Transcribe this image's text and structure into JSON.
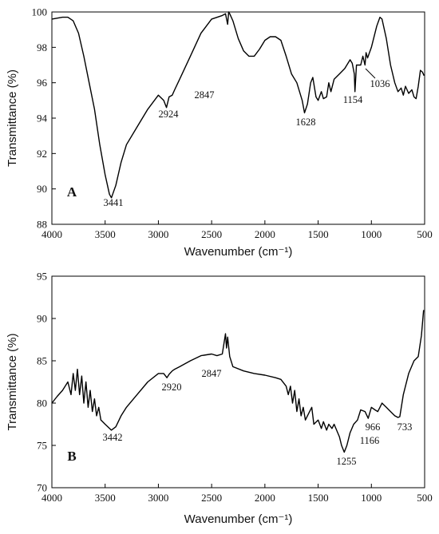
{
  "chart_data": [
    {
      "type": "line",
      "panel_label": "A",
      "xlabel": "Wavenumber (cm⁻¹)",
      "ylabel": "Transmittance (%)",
      "xlim": [
        4000,
        500
      ],
      "ylim": [
        88,
        100
      ],
      "xticks": [
        4000,
        3500,
        3000,
        2500,
        2000,
        1500,
        1000,
        500
      ],
      "yticks": [
        88,
        90,
        92,
        94,
        96,
        98,
        100
      ],
      "color": "#000000",
      "annotations": [
        "3441",
        "2924",
        "2847",
        "1628",
        "1154",
        "1036"
      ],
      "x": [
        4000,
        3900,
        3850,
        3800,
        3750,
        3700,
        3650,
        3600,
        3550,
        3500,
        3460,
        3441,
        3400,
        3350,
        3300,
        3200,
        3100,
        3000,
        2950,
        2924,
        2900,
        2870,
        2847,
        2800,
        2700,
        2600,
        2500,
        2400,
        2370,
        2350,
        2340,
        2330,
        2300,
        2250,
        2200,
        2150,
        2100,
        2050,
        2000,
        1950,
        1900,
        1850,
        1800,
        1750,
        1700,
        1650,
        1628,
        1600,
        1570,
        1550,
        1520,
        1500,
        1470,
        1450,
        1420,
        1400,
        1380,
        1350,
        1300,
        1250,
        1200,
        1180,
        1160,
        1154,
        1140,
        1100,
        1080,
        1060,
        1050,
        1036,
        1000,
        950,
        920,
        900,
        860,
        820,
        780,
        750,
        720,
        700,
        680,
        650,
        620,
        600,
        580,
        560,
        540,
        520,
        505
      ],
      "values": [
        99.6,
        99.7,
        99.7,
        99.5,
        98.8,
        97.5,
        96.0,
        94.5,
        92.5,
        90.8,
        89.7,
        89.5,
        90.2,
        91.5,
        92.5,
        93.5,
        94.5,
        95.3,
        95.0,
        94.6,
        95.2,
        95.3,
        95.6,
        96.2,
        97.5,
        98.8,
        99.6,
        99.8,
        99.9,
        99.3,
        100,
        99.9,
        99.5,
        98.5,
        97.8,
        97.5,
        97.5,
        97.9,
        98.4,
        98.6,
        98.6,
        98.4,
        97.5,
        96.5,
        96.0,
        95.0,
        94.3,
        94.8,
        96.0,
        96.3,
        95.2,
        95.0,
        95.5,
        95.1,
        95.2,
        96.0,
        95.5,
        96.2,
        96.5,
        96.8,
        97.3,
        97.1,
        96.5,
        95.5,
        97.0,
        97.0,
        97.5,
        97.0,
        97.7,
        97.4,
        98.0,
        99.2,
        99.7,
        99.6,
        98.5,
        97.0,
        96.0,
        95.5,
        95.7,
        95.3,
        95.8,
        95.4,
        95.6,
        95.2,
        95.1,
        95.8,
        96.7,
        96.6,
        96.4
      ]
    },
    {
      "type": "line",
      "panel_label": "B",
      "xlabel": "Wavenumber (cm⁻¹)",
      "ylabel": "Transmittance (%)",
      "xlim": [
        4000,
        500
      ],
      "ylim": [
        70,
        95
      ],
      "xticks": [
        4000,
        3500,
        3000,
        2500,
        2000,
        1500,
        1000,
        500
      ],
      "yticks": [
        70,
        75,
        80,
        85,
        90,
        95
      ],
      "color": "#000000",
      "annotations": [
        "3442",
        "2920",
        "2847",
        "1255",
        "1166",
        "966",
        "733"
      ],
      "x": [
        4000,
        3950,
        3900,
        3850,
        3820,
        3800,
        3780,
        3760,
        3740,
        3720,
        3700,
        3680,
        3660,
        3640,
        3620,
        3600,
        3580,
        3560,
        3540,
        3500,
        3442,
        3400,
        3350,
        3300,
        3200,
        3100,
        3000,
        2950,
        2920,
        2900,
        2870,
        2847,
        2800,
        2700,
        2600,
        2500,
        2450,
        2400,
        2370,
        2360,
        2350,
        2330,
        2300,
        2200,
        2100,
        2000,
        1900,
        1850,
        1800,
        1780,
        1760,
        1740,
        1720,
        1700,
        1680,
        1660,
        1640,
        1620,
        1580,
        1560,
        1540,
        1500,
        1470,
        1450,
        1420,
        1400,
        1370,
        1350,
        1300,
        1280,
        1255,
        1230,
        1200,
        1166,
        1130,
        1100,
        1060,
        1030,
        1000,
        966,
        940,
        920,
        900,
        860,
        820,
        780,
        750,
        733,
        700,
        650,
        600,
        560,
        530,
        510
      ],
      "values": [
        80.0,
        80.8,
        81.5,
        82.5,
        81.0,
        83.5,
        81.5,
        84.0,
        81.0,
        83.2,
        80.0,
        82.5,
        79.5,
        81.5,
        79.0,
        80.5,
        78.5,
        79.5,
        78.0,
        77.5,
        76.8,
        77.2,
        78.5,
        79.5,
        81.0,
        82.5,
        83.5,
        83.5,
        83.0,
        83.4,
        83.8,
        84.0,
        84.3,
        85.0,
        85.6,
        85.8,
        85.6,
        85.8,
        88.2,
        86.5,
        87.8,
        85.5,
        84.3,
        83.8,
        83.5,
        83.3,
        83.0,
        82.8,
        82.0,
        81.0,
        82.0,
        80.0,
        81.5,
        79.0,
        80.5,
        78.5,
        79.5,
        78.0,
        79.0,
        79.5,
        77.5,
        78.0,
        77.0,
        77.8,
        76.8,
        77.5,
        77.0,
        77.5,
        76.0,
        75.0,
        74.2,
        75.0,
        76.5,
        77.5,
        78.0,
        79.2,
        79.0,
        78.2,
        79.5,
        79.2,
        79.0,
        79.5,
        80.0,
        79.5,
        79.0,
        78.5,
        78.3,
        78.4,
        81.0,
        83.5,
        85.0,
        85.5,
        88.0,
        91.0
      ]
    }
  ]
}
